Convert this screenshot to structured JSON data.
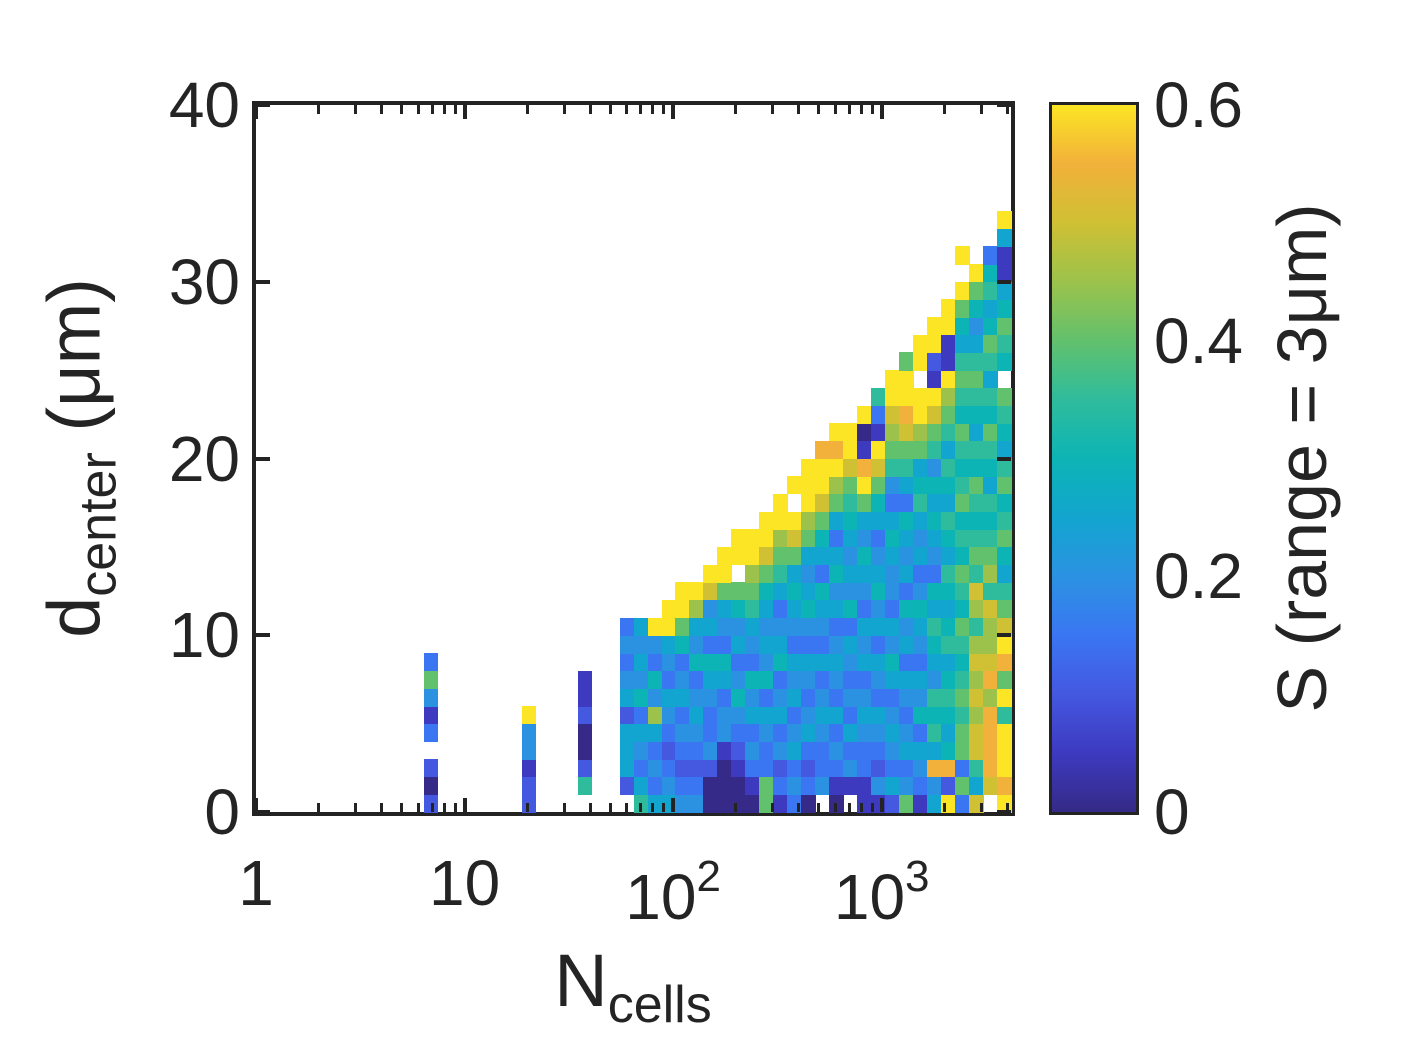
{
  "figure": {
    "background": "#ffffff",
    "axis_color": "#232323",
    "text_color": "#242424"
  },
  "chart_data": {
    "type": "heatmap",
    "title": "",
    "xlabel": {
      "pre": "N",
      "sub": "cells"
    },
    "ylabel": {
      "pre": "d",
      "sub": "center",
      "post": " (μm)"
    },
    "colorbar_label": "S (range = 3μm)",
    "x_scale": "log10",
    "xlim": [
      1,
      4170
    ],
    "ylim": [
      0,
      40
    ],
    "clim": [
      0,
      0.6
    ],
    "grid_lines": false,
    "x_ticks": [
      {
        "label": "1",
        "value": 1
      },
      {
        "label": "10",
        "value": 10
      },
      {
        "label": "10",
        "exp": "2",
        "value": 100
      },
      {
        "label": "10",
        "exp": "3",
        "value": 1000
      }
    ],
    "x_minor_ticks": [
      2,
      3,
      4,
      5,
      6,
      7,
      8,
      9,
      20,
      30,
      40,
      50,
      60,
      70,
      80,
      90,
      200,
      300,
      400,
      500,
      600,
      700,
      800,
      900,
      2000,
      3000,
      4000
    ],
    "y_ticks": [
      {
        "label": "0",
        "value": 0
      },
      {
        "label": "10",
        "value": 10
      },
      {
        "label": "20",
        "value": 20
      },
      {
        "label": "30",
        "value": 30
      },
      {
        "label": "40",
        "value": 40
      }
    ],
    "colorbar_ticks": [
      {
        "label": "0",
        "value": 0
      },
      {
        "label": "0.2",
        "value": 0.2
      },
      {
        "label": "0.4",
        "value": 0.4
      },
      {
        "label": "0.6",
        "value": 0.6
      }
    ],
    "colormap_name": "parula",
    "colorbar_gradient_bottom_to_top": [
      "#352a87",
      "#3d3ac0",
      "#4458e0",
      "#3a76f2",
      "#2b92e2",
      "#12a5cf",
      "#0db4b5",
      "#2fbc9c",
      "#62c16c",
      "#9cc24b",
      "#cfc034",
      "#f2b13a",
      "#fbe524"
    ],
    "palette": {
      "d": "#352a87",
      "n": "#3d3ac0",
      "v": "#4458e0",
      "b": "#3a76f2",
      "l": "#2b92e2",
      "c": "#12a5cf",
      "t": "#0db4b5",
      "e": "#2fbc9c",
      "g": "#62c16c",
      "o": "#9cc24b",
      "k": "#cfc034",
      "a": "#f2b13a",
      "y": "#fbe524"
    },
    "palette_s_values": {
      "d": 0.02,
      "n": 0.07,
      "v": 0.11,
      "b": 0.16,
      "l": 0.21,
      "c": 0.26,
      "t": 0.3,
      "e": 0.34,
      "g": 0.4,
      "o": 0.46,
      "k": 0.5,
      "a": 0.53,
      "y": 0.59
    },
    "grid": {
      "n_cols": 54,
      "log10_max": 3.62,
      "row_height_um": 1,
      "legend": "columns are log-spaced bins in N_cells; cells string is rows bottom-to-top, 1 um per row, '.' = empty",
      "columns": [
        {
          "k": 12,
          "cells": "vdv.bnlgb"
        },
        {
          "k": 19,
          "cells": "vvnlly"
        },
        {
          "k": 23,
          "cells": ".evddvnn"
        },
        {
          "k": 26,
          "cells": ".vcccvclblb"
        },
        {
          "k": 27,
          "cells": "ecblcbtlclc"
        },
        {
          "k": 28,
          "cells": "cblbcoltbly"
        },
        {
          "k": 29,
          "cells": "clbvblcblcyy"
        },
        {
          "k": 30,
          "cells": "lbvblbclbtgyy"
        },
        {
          "k": 31,
          "cells": "lbvblclbtlcoy"
        },
        {
          "k": 32,
          "cells": "ddvlbblctbclky"
        },
        {
          "k": 33,
          "cells": "dddnllbctblcgyy"
        },
        {
          "k": 34,
          "cells": "ddnvbltlbcltg.yy"
        },
        {
          "k": 35,
          "cells": "dnblbcltblcegoyy"
        },
        {
          "k": 36,
          "cells": "ggbblcbtlclctgkyy"
        },
        {
          "k": 37,
          "cells": "nbvlbclbtclbcegoyy"
        },
        {
          "k": 38,
          "cells": "blbclbclcblctcgky.y"
        },
        {
          "k": 39,
          "cells": "dbvbclblcbltclcgoyyy"
        },
        {
          "k": 40,
          "cells": ".lbblclbcblctbctgkyya"
        },
        {
          "k": 41,
          "cells": "dnblbcblclbcltcbcgoyay"
        },
        {
          "k": 42,
          "cells": ".nlbcblblcbtlclctegkyy"
        },
        {
          "k": 43,
          "cells": "nnbblclbclcblctlcgyandy"
        },
        {
          "k": 44,
          "cells": "nlvblcblcbcltclbctgkynbe"
        },
        {
          "k": 45,
          "cells": "vcblclbctlcbllctcblegokyy"
        },
        {
          "k": 46,
          "cells": "glbclblcbcltbclctbcegkayyg"
        },
        {
          "k": 47,
          "cells": "nblcbtlcblctlbclcetcgoyy.yy"
        },
        {
          "k": 48,
          "cells": "clacetelctectblctctlegkynvyy"
        },
        {
          "k": 49,
          "cells": "yvatctetcetctectectecegoynnyy"
        },
        {
          "k": 50,
          "cells": "bgbggegetegtegtetgetegtegectgy.y"
        },
        {
          "k": 51,
          "cells": "kcekkokokoeokegetegtectegecltgy"
        },
        {
          "k": 52,
          "cells": ".kaaaaoakookeogetectegtecegtcetb"
        },
        {
          "k": 53,
          "cells": "yayyyeygaykgectgetgecteg tegtcnncy"
        }
      ]
    }
  }
}
